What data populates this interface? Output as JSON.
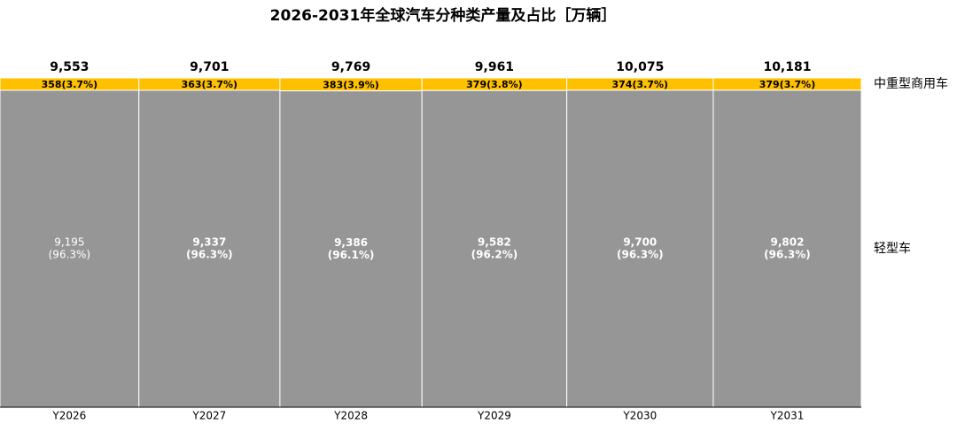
{
  "chart_data": {
    "type": "marimekko",
    "title": "2026-2031年全球汽车分种类产量及占比［万辆］",
    "categories": [
      "Y2026",
      "Y2027",
      "Y2028",
      "Y2029",
      "Y2030",
      "Y2031"
    ],
    "totals": [
      9553,
      9701,
      9769,
      9961,
      10075,
      10181
    ],
    "total_labels": [
      "9,553",
      "9,701",
      "9,769",
      "9,961",
      "10,075",
      "10,181"
    ],
    "series": [
      {
        "name": "轻型车",
        "color": "#969696",
        "values": [
          9195,
          9337,
          9386,
          9582,
          9700,
          9802
        ],
        "value_labels": [
          "9,195",
          "9,337",
          "9,386",
          "9,582",
          "9,700",
          "9,802"
        ],
        "share_labels": [
          "(96.3%)",
          "(96.3%)",
          "(96.1%)",
          "(96.2%)",
          "(96.3%)",
          "(96.3%)"
        ]
      },
      {
        "name": "中重型商用车",
        "color": "#ffc000",
        "values": [
          358,
          363,
          383,
          379,
          374,
          379
        ],
        "value_labels": [
          "358(3.7%)",
          "363(3.7%)",
          "383(3.9%)",
          "379(3.8%)",
          "374(3.7%)",
          "379(3.7%)"
        ]
      }
    ]
  }
}
